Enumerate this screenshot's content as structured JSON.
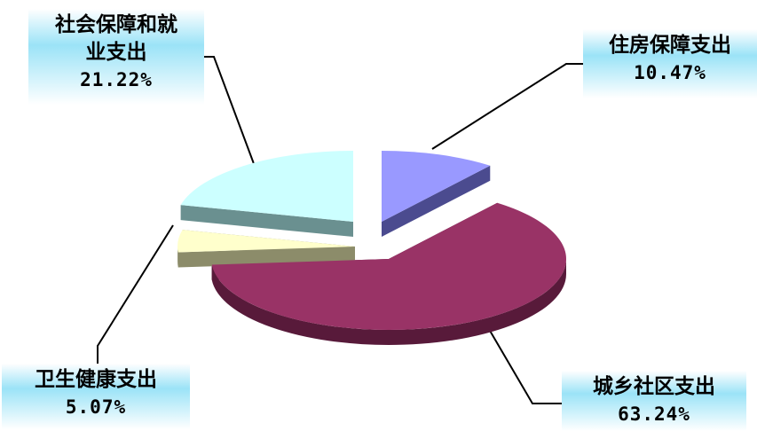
{
  "chart_data": {
    "type": "pie",
    "style": "3d-exploded",
    "slices": [
      {
        "label": "住房保障支出",
        "label_lines": [
          "住房保障支出"
        ],
        "percent_text": "10.47%",
        "value": 10.47,
        "top_color": "#9999ff",
        "side_color": "#4b4b8f"
      },
      {
        "label": "城乡社区支出",
        "label_lines": [
          "城乡社区支出"
        ],
        "percent_text": "63.24%",
        "value": 63.24,
        "top_color": "#993366",
        "side_color": "#581a3a"
      },
      {
        "label": "卫生健康支出",
        "label_lines": [
          "卫生健康支出"
        ],
        "percent_text": "5.07%",
        "value": 5.07,
        "top_color": "#ffffcc",
        "side_color": "#8c8c6a"
      },
      {
        "label": "社会保障和就业支出",
        "label_lines": [
          "社会保障和就",
          "业支出"
        ],
        "percent_text": "21.22%",
        "value": 21.22,
        "top_color": "#ccffff",
        "side_color": "#6a9090"
      }
    ],
    "label_background": "#9be3f7",
    "leader_line_color": "#000000"
  }
}
